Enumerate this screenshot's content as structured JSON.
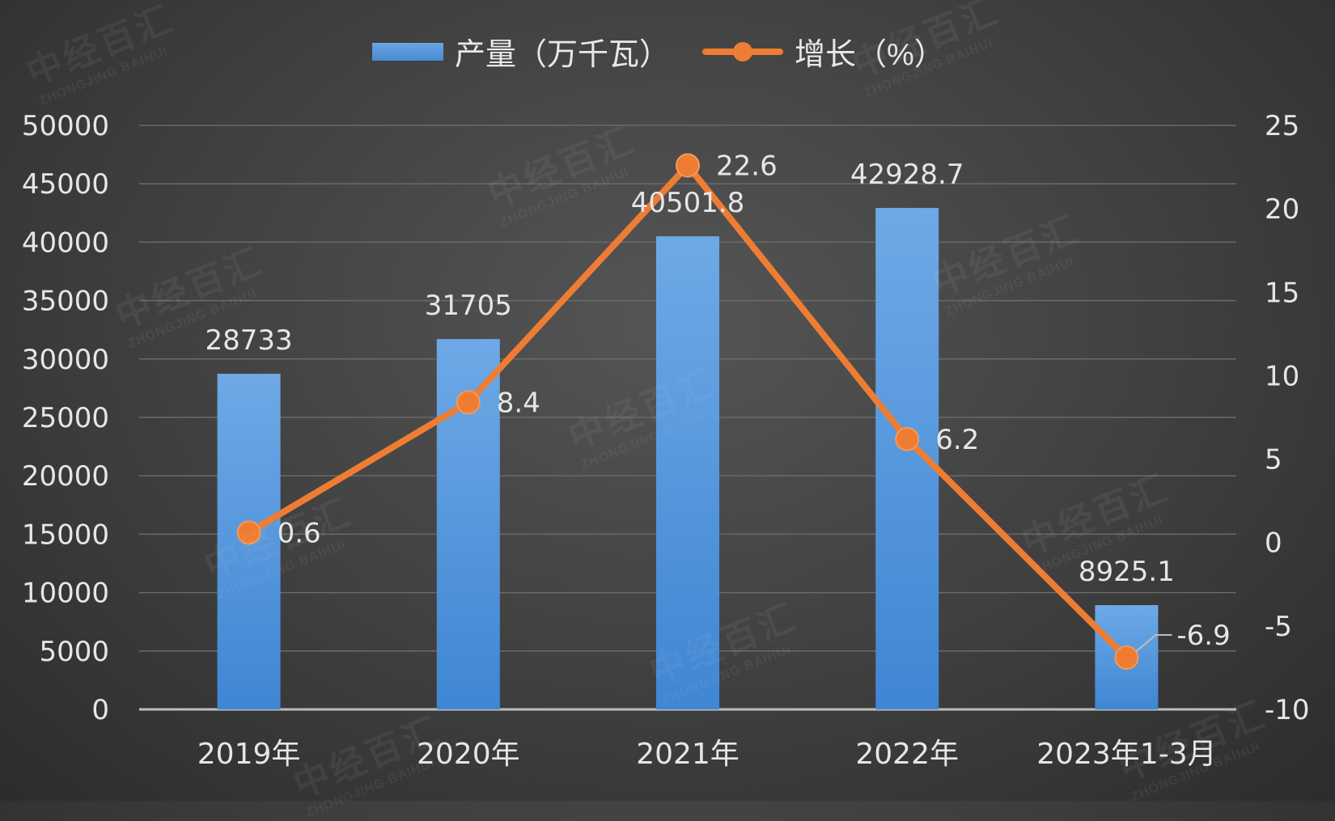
{
  "watermark": {
    "text": "中经百汇",
    "sub": "ZHONGJING BAIHUI"
  },
  "colors": {
    "bar": "#5b9bdc",
    "line": "#ee7d33",
    "grid": "#6a6a6a",
    "text": "#e6e6e6"
  },
  "chart_data": {
    "type": "bar+line",
    "categories": [
      "2019年",
      "2020年",
      "2021年",
      "2022年",
      "2023年1-3月"
    ],
    "series": [
      {
        "name": "产量（万千瓦）",
        "type": "bar",
        "axis": "left",
        "values": [
          28733,
          31705,
          40501.8,
          42928.7,
          8925.1
        ],
        "labels": [
          "28733",
          "31705",
          "40501.8",
          "42928.7",
          "8925.1"
        ]
      },
      {
        "name": "增长（%）",
        "type": "line",
        "axis": "right",
        "values": [
          0.6,
          8.4,
          22.6,
          6.2,
          -6.9
        ],
        "labels": [
          "0.6",
          "8.4",
          "22.6",
          "6.2",
          "-6.9"
        ]
      }
    ],
    "y_left": {
      "min": 0,
      "max": 50000,
      "step": 5000,
      "ticks": [
        "0",
        "5000",
        "10000",
        "15000",
        "20000",
        "25000",
        "30000",
        "35000",
        "40000",
        "45000",
        "50000"
      ]
    },
    "y_right": {
      "min": -10,
      "max": 25,
      "step": 5,
      "ticks": [
        "-10",
        "-5",
        "0",
        "5",
        "10",
        "15",
        "20",
        "25"
      ]
    },
    "grid": true,
    "legend": "top-center"
  }
}
